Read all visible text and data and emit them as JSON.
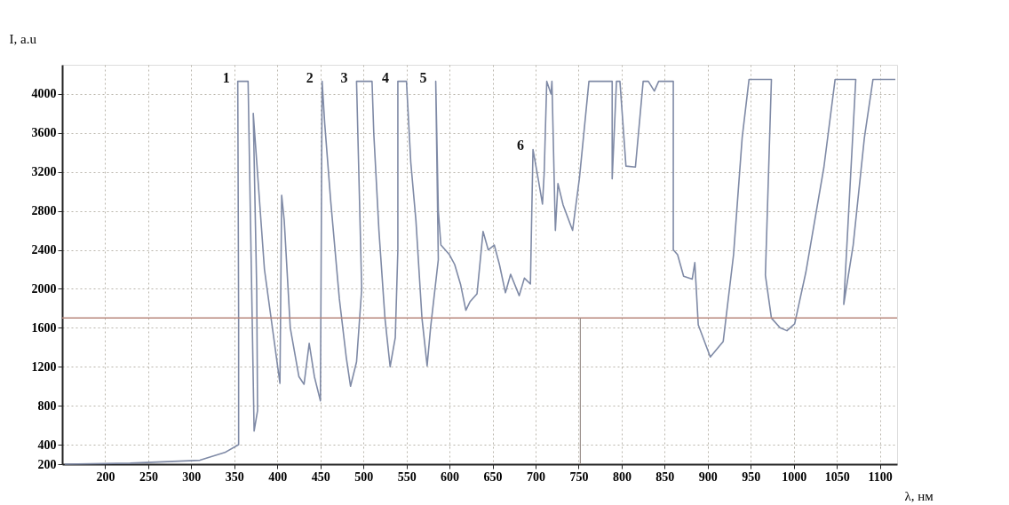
{
  "chart_data": {
    "type": "line",
    "xlabel": "λ, нм",
    "ylabel": "I, a.u",
    "xlim": [
      150,
      1120
    ],
    "xticks": [
      200,
      250,
      300,
      350,
      400,
      450,
      500,
      550,
      600,
      650,
      700,
      750,
      800,
      850,
      900,
      950,
      1000,
      1050,
      1100
    ],
    "ylim": [
      200,
      4300
    ],
    "yticks": [
      200,
      400,
      800,
      1200,
      1600,
      2000,
      2400,
      2800,
      3200,
      3600,
      4000
    ],
    "grid": true,
    "line_style": "solid",
    "series": [
      {
        "color": "#7f8aa6",
        "x": [
          153,
          229,
          310,
          339,
          355,
          355,
          354,
          366,
          373,
          377,
          376,
          372,
          385,
          403,
          405,
          408,
          415,
          425,
          431,
          437,
          443,
          450,
          452,
          455,
          462,
          472,
          480,
          485,
          492,
          498,
          492,
          510,
          512,
          518,
          525,
          531,
          537,
          540,
          540,
          550,
          555,
          561,
          568,
          574,
          578,
          587,
          584,
          587,
          590,
          600,
          606,
          613,
          619,
          624,
          632,
          639,
          645,
          652,
          658,
          665,
          671,
          681,
          687,
          694,
          697,
          703,
          708,
          710,
          713,
          718,
          719,
          723,
          726,
          732,
          743,
          751,
          762,
          789,
          789,
          794,
          798,
          805,
          816,
          825,
          831,
          838,
          843,
          860,
          860,
          865,
          872,
          882,
          885,
          889,
          903,
          918,
          930,
          940,
          948,
          974,
          967,
          974,
          984,
          992,
          1001,
          1014,
          1035,
          1048,
          1072,
          1058,
          1069,
          1082,
          1092,
          1118
        ],
        "values": [
          200,
          210,
          240,
          320,
          400,
          1690,
          4130,
          4130,
          540,
          750,
          2000,
          3800,
          2200,
          1030,
          2960,
          2700,
          1600,
          1100,
          1020,
          1440,
          1100,
          850,
          4130,
          3700,
          2900,
          1900,
          1300,
          1000,
          1250,
          2000,
          4130,
          4130,
          3600,
          2600,
          1700,
          1200,
          1500,
          2400,
          4130,
          4130,
          3300,
          2700,
          1700,
          1210,
          1600,
          2300,
          4130,
          2800,
          2450,
          2350,
          2250,
          2040,
          1780,
          1870,
          1950,
          2590,
          2400,
          2450,
          2250,
          1960,
          2150,
          1930,
          2110,
          2050,
          3430,
          3130,
          2870,
          3190,
          4130,
          4000,
          4130,
          2600,
          3080,
          2860,
          2600,
          3140,
          4130,
          4130,
          3130,
          4130,
          4130,
          3260,
          3250,
          4130,
          4130,
          4030,
          4130,
          4130,
          2400,
          2350,
          2130,
          2100,
          2270,
          1630,
          1300,
          1460,
          2350,
          3550,
          4150,
          4150,
          2140,
          1700,
          1600,
          1570,
          1640,
          2170,
          3250,
          4150,
          4150,
          1840,
          2450,
          3550,
          4150,
          4150
        ]
      }
    ],
    "annotations": [
      {
        "text": "1",
        "x": 355,
        "y": 4130
      },
      {
        "text": "2",
        "x": 452,
        "y": 4130
      },
      {
        "text": "3",
        "x": 492,
        "y": 4130
      },
      {
        "text": "4",
        "x": 540,
        "y": 4130
      },
      {
        "text": "5",
        "x": 584,
        "y": 4130
      },
      {
        "text": "6",
        "x": 697,
        "y": 3430
      }
    ],
    "ref_lines": [
      {
        "axis": "y",
        "value": 1700,
        "color": "#b8877c"
      },
      {
        "axis": "x",
        "value": 752,
        "color": "#9a8f8a"
      }
    ]
  }
}
